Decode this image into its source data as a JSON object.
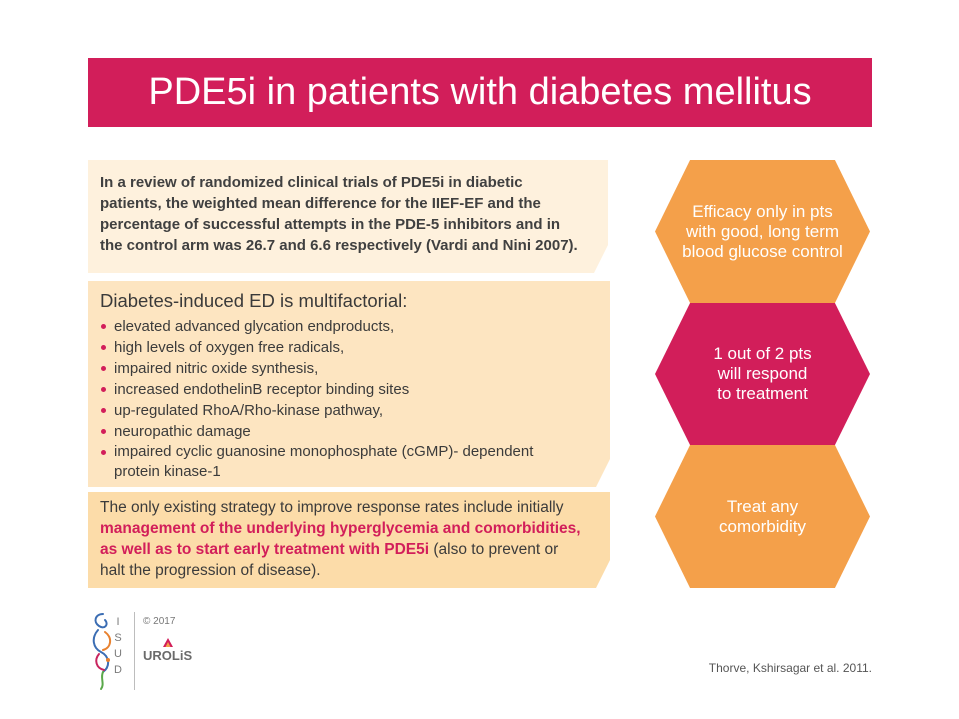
{
  "colors": {
    "accent_magenta": "#D21E5A",
    "accent_orange": "#F4A04A",
    "panel_light": "#FEF1DD",
    "panel_mid": "#FDE5C1",
    "panel_deep": "#FCDCA9",
    "text_dark": "#3B3B3B"
  },
  "title": "PDE5i in patients with diabetes mellitus",
  "review_panel": {
    "lines": [
      "In a review of randomized clinical trials of PDE5i in diabetic",
      "patients, the weighted mean difference for the IIEF-EF and the",
      "percentage of successful attempts in the PDE-5 inhibitors and in",
      "the control arm was 26.7 and 6.6 respectively (Vardi and Nini 2007)."
    ]
  },
  "mechanisms_panel": {
    "heading": "Diabetes-induced ED is multifactorial:",
    "bullets": [
      "elevated advanced glycation endproducts,",
      "high levels of oxygen free radicals,",
      "impaired nitric oxide synthesis,",
      "increased endothelinB receptor binding sites",
      "up-regulated RhoA/Rho-kinase pathway,",
      "neuropathic damage",
      "impaired cyclic guanosine monophosphate (cGMP)- dependent protein kinase-1"
    ]
  },
  "strategy_panel": {
    "intro": "The only existing strategy to improve response rates include initially",
    "highlight_1": "management of the underlying hyperglycemia and comorbidities,",
    "highlight_2": "as well as to start early treatment with PDE5i",
    "tail_1": " (also to prevent or",
    "tail_2": "halt the progression of disease)."
  },
  "outcomes": [
    {
      "lines": [
        "Efficacy only in pts",
        "with good, long term",
        "blood glucose control"
      ],
      "color": "#F4A04A"
    },
    {
      "lines": [
        "1 out of 2 pts",
        "will respond",
        "to treatment"
      ],
      "color": "#D21E5A"
    },
    {
      "lines": [
        "Treat any",
        "comorbidity"
      ],
      "color": "#F4A04A"
    }
  ],
  "footer": {
    "isud_logo_letters": [
      "I",
      "S",
      "U",
      "D"
    ],
    "copyright": "© 2017",
    "urolis_logo": "UROLiS",
    "citation": "Thorve, Kshirsagar et al. 2011."
  }
}
